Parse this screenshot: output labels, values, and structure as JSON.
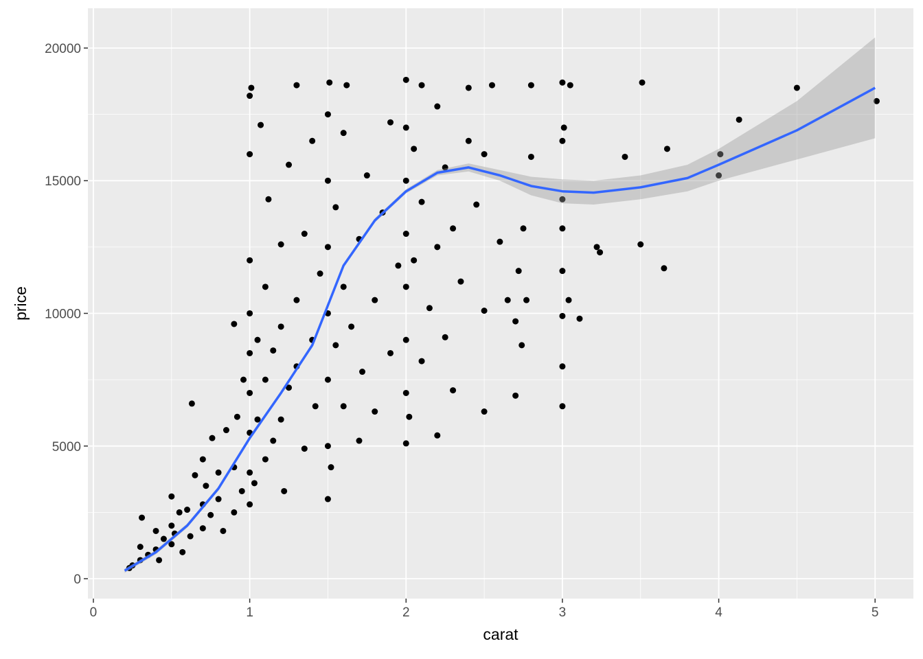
{
  "chart_data": {
    "type": "scatter",
    "x_label": "carat",
    "y_label": "price",
    "xlim": [
      -0.035,
      5.245
    ],
    "ylim": [
      -750,
      21500
    ],
    "xticks": [
      0,
      1,
      2,
      3,
      4,
      5
    ],
    "yticks": [
      0,
      5000,
      10000,
      15000,
      20000
    ],
    "grid": true,
    "point_color": "#000000",
    "points": {
      "x": [
        0.23,
        0.25,
        0.3,
        0.3,
        0.31,
        0.35,
        0.4,
        0.4,
        0.42,
        0.45,
        0.5,
        0.5,
        0.5,
        0.52,
        0.55,
        0.57,
        0.6,
        0.62,
        0.63,
        0.65,
        0.7,
        0.7,
        0.7,
        0.72,
        0.75,
        0.76,
        0.8,
        0.8,
        0.83,
        0.85,
        0.9,
        0.9,
        0.9,
        0.92,
        0.95,
        0.96,
        1.0,
        1.0,
        1.0,
        1.0,
        1.0,
        1.0,
        1.0,
        1.0,
        1.0,
        1.01,
        1.03,
        1.05,
        1.05,
        1.07,
        1.1,
        1.1,
        1.1,
        1.12,
        1.15,
        1.15,
        1.2,
        1.2,
        1.2,
        1.22,
        1.25,
        1.25,
        1.3,
        1.3,
        1.3,
        1.35,
        1.35,
        1.4,
        1.4,
        1.42,
        1.45,
        1.5,
        1.5,
        1.5,
        1.5,
        1.5,
        1.5,
        1.5,
        1.51,
        1.52,
        1.55,
        1.55,
        1.6,
        1.6,
        1.6,
        1.62,
        1.65,
        1.7,
        1.7,
        1.72,
        1.75,
        1.8,
        1.8,
        1.85,
        1.9,
        1.9,
        1.95,
        2.0,
        2.0,
        2.0,
        2.0,
        2.0,
        2.0,
        2.0,
        2.0,
        2.02,
        2.05,
        2.05,
        2.1,
        2.1,
        2.1,
        2.15,
        2.2,
        2.2,
        2.2,
        2.25,
        2.25,
        2.3,
        2.3,
        2.35,
        2.4,
        2.4,
        2.45,
        2.5,
        2.5,
        2.5,
        2.55,
        2.6,
        2.65,
        2.7,
        2.7,
        2.72,
        2.74,
        2.75,
        2.77,
        2.8,
        2.8,
        3.0,
        3.0,
        3.0,
        3.0,
        3.0,
        3.0,
        3.0,
        3.0,
        3.01,
        3.04,
        3.05,
        3.11,
        3.22,
        3.24,
        3.4,
        3.5,
        3.51,
        3.65,
        3.67,
        4.0,
        4.01,
        4.13,
        4.5,
        5.01
      ],
      "y": [
        400,
        500,
        700,
        1200,
        2300,
        900,
        1100,
        1800,
        700,
        1500,
        2000,
        1300,
        3100,
        1700,
        2500,
        1000,
        2600,
        1600,
        6600,
        3900,
        2800,
        4500,
        1900,
        3500,
        2400,
        5300,
        3000,
        4000,
        1800,
        5600,
        4200,
        9600,
        2500,
        6100,
        3300,
        7500,
        4000,
        5500,
        7000,
        8500,
        10000,
        12000,
        16000,
        18200,
        2800,
        18500,
        3600,
        6000,
        9000,
        17100,
        4500,
        7500,
        11000,
        14300,
        5200,
        8600,
        6000,
        9500,
        12600,
        3300,
        15600,
        7200,
        8000,
        10500,
        18600,
        4900,
        13000,
        9000,
        16500,
        6500,
        11500,
        3000,
        5000,
        7500,
        10000,
        12500,
        15000,
        17500,
        18700,
        4200,
        8800,
        14000,
        6500,
        11000,
        16800,
        18600,
        9500,
        5200,
        12800,
        7800,
        15200,
        10500,
        6300,
        13800,
        8500,
        17200,
        11800,
        5100,
        7000,
        9000,
        11000,
        13000,
        15000,
        17000,
        18800,
        6100,
        12000,
        16200,
        8200,
        14200,
        18600,
        10200,
        5400,
        12500,
        17800,
        9100,
        15500,
        7100,
        13200,
        11200,
        16500,
        18500,
        14100,
        6300,
        10100,
        16000,
        18600,
        12700,
        10500,
        6900,
        9700,
        11600,
        8800,
        13200,
        10500,
        15900,
        18600,
        6500,
        8000,
        9900,
        11600,
        13200,
        14300,
        16500,
        18700,
        17000,
        10500,
        18600,
        9800,
        12500,
        12300,
        15900,
        12600,
        18700,
        11700,
        16200,
        15200,
        16000,
        17300,
        18500,
        18000
      ]
    },
    "smooth": {
      "color": "#3366ff",
      "x": [
        0.2,
        0.4,
        0.6,
        0.8,
        1.0,
        1.2,
        1.4,
        1.5,
        1.6,
        1.8,
        2.0,
        2.2,
        2.4,
        2.6,
        2.8,
        3.0,
        3.2,
        3.5,
        3.8,
        4.0,
        4.5,
        5.0
      ],
      "y": [
        300,
        1000,
        2000,
        3400,
        5300,
        7000,
        8800,
        10300,
        11800,
        13500,
        14600,
        15300,
        15500,
        15200,
        14800,
        14600,
        14550,
        14750,
        15100,
        15600,
        16900,
        18500
      ],
      "ymin": [
        220,
        920,
        1920,
        3320,
        5220,
        6920,
        8720,
        10220,
        11720,
        13420,
        14520,
        15200,
        15350,
        15000,
        14450,
        14150,
        14100,
        14300,
        14600,
        15000,
        15800,
        16600
      ],
      "ymax": [
        380,
        1080,
        2080,
        3480,
        5380,
        7080,
        8880,
        10380,
        11880,
        13580,
        14680,
        15400,
        15650,
        15400,
        15150,
        15050,
        15000,
        15200,
        15600,
        16200,
        18000,
        20400
      ]
    }
  }
}
